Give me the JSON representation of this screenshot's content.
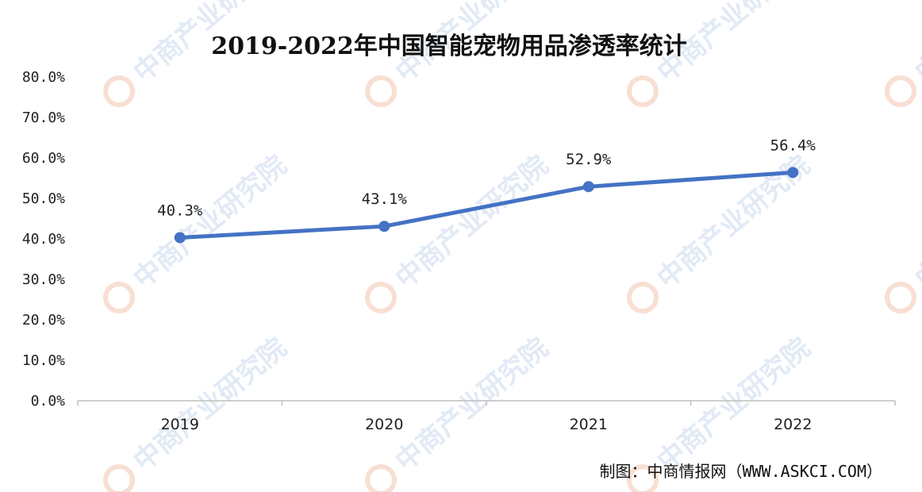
{
  "chart_data": {
    "type": "line",
    "title": "2019-2022年中国智能宠物用品渗透率统计",
    "categories": [
      "2019",
      "2020",
      "2021",
      "2022"
    ],
    "series": [
      {
        "values": [
          40.3,
          43.1,
          52.9,
          56.4
        ],
        "labels": [
          "40.3%",
          "43.1%",
          "52.9%",
          "56.4%"
        ],
        "color": "#4472c4"
      }
    ],
    "ylim": [
      0,
      80
    ],
    "yticks": [
      "0.0%",
      "10.0%",
      "20.0%",
      "30.0%",
      "40.0%",
      "50.0%",
      "60.0%",
      "70.0%",
      "80.0%"
    ],
    "grid": false,
    "legend": "none"
  },
  "source": "制图：中商情报网（WWW.ASKCI.COM）",
  "watermark": "中商产业研究院",
  "colors": {
    "line": "#4472c4",
    "axis": "#bfbfbf",
    "watermark": "#c9d9ee"
  }
}
